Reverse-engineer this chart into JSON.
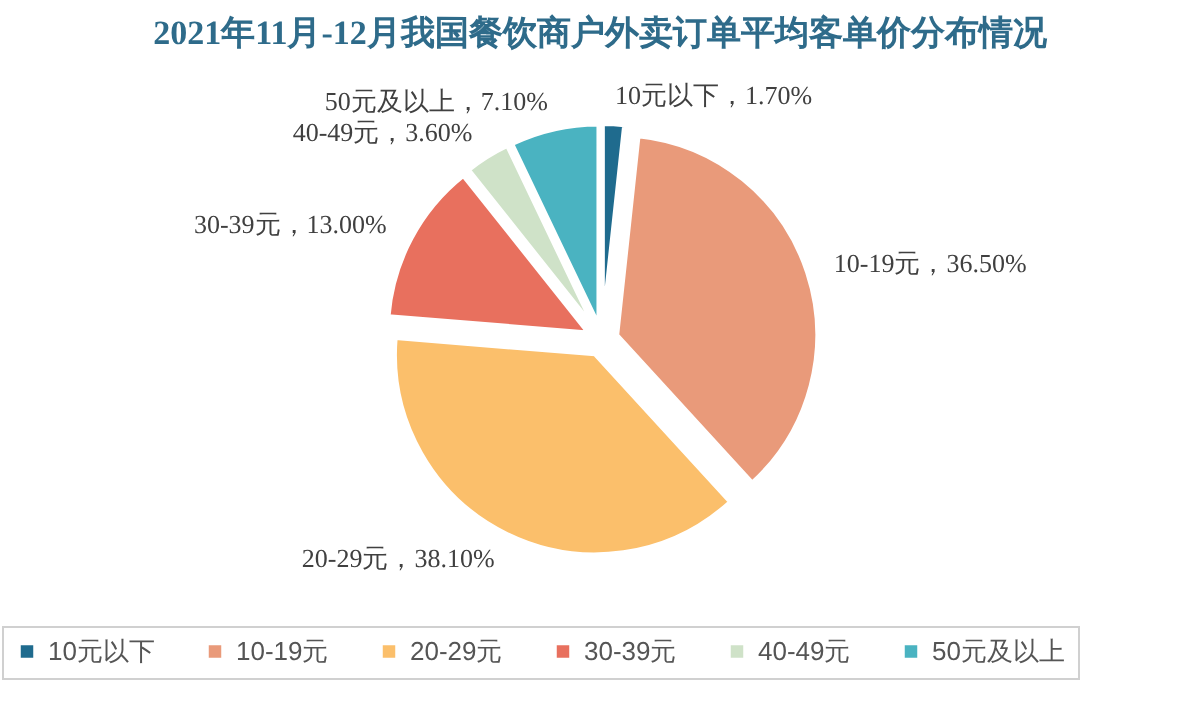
{
  "chart_data": {
    "type": "pie",
    "title": "2021年11月-12月我国餐饮商户外卖订单平均客单价分布情况",
    "categories": [
      "10元以下",
      "10-19元",
      "20-29元",
      "30-39元",
      "40-49元",
      "50元及以上"
    ],
    "values": [
      1.7,
      36.5,
      38.1,
      13.0,
      3.6,
      7.1
    ],
    "colors": [
      "#1f6b8e",
      "#e99a7a",
      "#fbbf6b",
      "#e8705e",
      "#cfe2c8",
      "#4ab3c1"
    ],
    "value_labels": [
      "10元以下，1.70%",
      "10-19元，36.50%",
      "20-29元，38.10%",
      "30-39元，13.00%",
      "40-49元，3.60%",
      "50元及以上，7.10%"
    ],
    "legend": "bottom"
  }
}
